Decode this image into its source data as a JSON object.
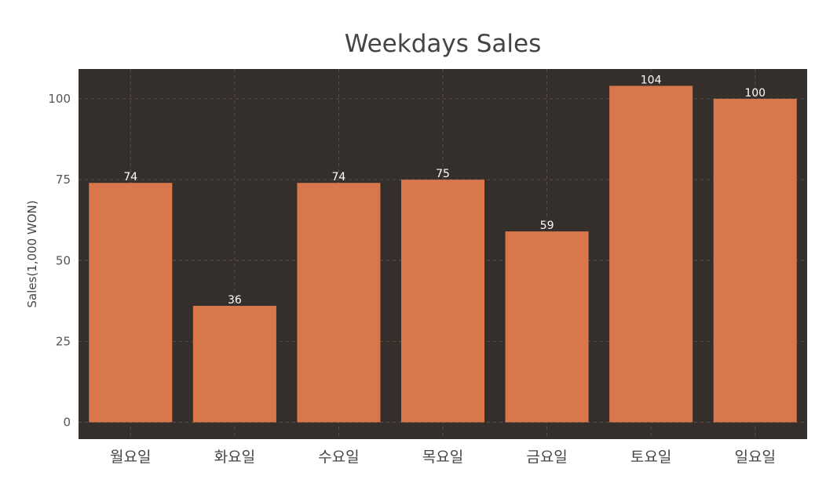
{
  "chart_data": {
    "type": "bar",
    "title": "Weekdays Sales",
    "xlabel": "",
    "ylabel": "Sales(1,000 WON)",
    "categories": [
      "월요일",
      "화요일",
      "수요일",
      "목요일",
      "금요일",
      "토요일",
      "일요일"
    ],
    "values": [
      74,
      36,
      74,
      75,
      59,
      104,
      100
    ],
    "data_labels": [
      "74",
      "36",
      "74",
      "75",
      "59",
      "104",
      "100"
    ],
    "yticks": [
      0,
      25,
      50,
      75,
      100
    ],
    "ylim": [
      -5.2,
      109.2
    ],
    "grid": true,
    "colors": {
      "bar": "#d9774c",
      "plot_background": "#352f2c",
      "grid": "#5a514c",
      "data_label": "#ffffff"
    }
  }
}
